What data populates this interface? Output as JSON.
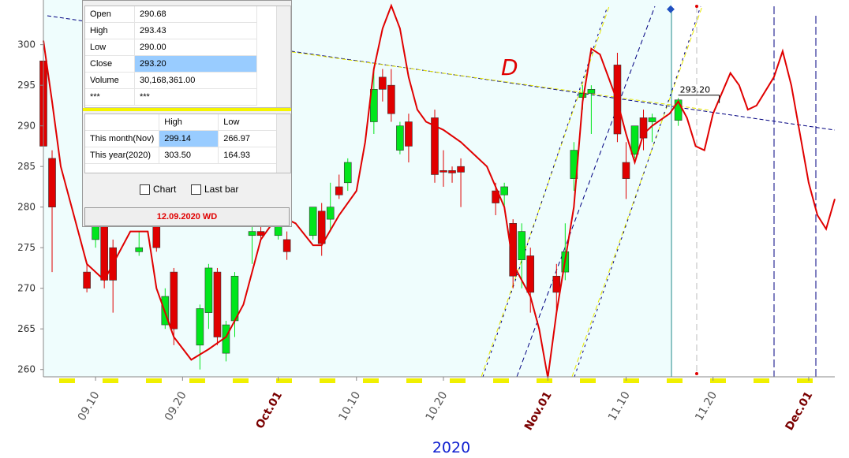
{
  "chart_data": {
    "type": "candlestick",
    "x": [
      "2020-09-04",
      "2020-09-05",
      "2020-09-09",
      "2020-09-10",
      "2020-09-11",
      "2020-09-12",
      "2020-09-15",
      "2020-09-17",
      "2020-09-18",
      "2020-09-19",
      "2020-09-22",
      "2020-09-23",
      "2020-09-24",
      "2020-09-25",
      "2020-09-26",
      "2020-09-28",
      "2020-09-29",
      "2020-10-01",
      "2020-10-02",
      "2020-10-05",
      "2020-10-06",
      "2020-10-07",
      "2020-10-08",
      "2020-10-09",
      "2020-10-12",
      "2020-10-13",
      "2020-10-14",
      "2020-10-15",
      "2020-10-16",
      "2020-10-19",
      "2020-10-20",
      "2020-10-21",
      "2020-10-22",
      "2020-10-26",
      "2020-10-27",
      "2020-10-28",
      "2020-10-29",
      "2020-10-30",
      "2020-11-02",
      "2020-11-03",
      "2020-11-04",
      "2020-11-05",
      "2020-11-06",
      "2020-11-09",
      "2020-11-10",
      "2020-11-11",
      "2020-11-12",
      "2020-11-13",
      "2020-11-16"
    ],
    "open": [
      298,
      286,
      272,
      276,
      279,
      275,
      274.5,
      278,
      265.5,
      272,
      263,
      267,
      272,
      262,
      266,
      276.5,
      277,
      276.5,
      276,
      276.5,
      279.5,
      278.5,
      282.5,
      283,
      290.5,
      296,
      295,
      287,
      290.5,
      291,
      284.5,
      284.5,
      285,
      282,
      281.5,
      278,
      273.5,
      274,
      271.5,
      272,
      283.5,
      293.5,
      294,
      297.5,
      285.5,
      286.5,
      291,
      290.5,
      290.68
    ],
    "high": [
      301,
      287,
      273,
      282,
      282,
      276,
      277,
      279,
      270,
      272.5,
      268,
      273,
      272.5,
      266,
      272,
      281,
      278,
      279,
      277,
      280,
      280.5,
      283,
      284,
      286,
      297,
      297,
      297,
      290.5,
      291.5,
      292,
      287,
      285,
      286,
      283,
      283,
      278.5,
      278,
      275,
      273,
      278,
      288,
      295,
      295,
      299,
      288,
      290,
      292,
      291.5,
      293.43
    ],
    "low": [
      285,
      272,
      269.5,
      275,
      270,
      267,
      274,
      274.5,
      265,
      263,
      260,
      265,
      263,
      261,
      264,
      273,
      276,
      276,
      273.5,
      276,
      274,
      277,
      281,
      282,
      289,
      293,
      290.5,
      286.5,
      285.5,
      283,
      282.5,
      283,
      280,
      279,
      280,
      270,
      270,
      267,
      267,
      271,
      282,
      292,
      289,
      288,
      281,
      286,
      287,
      288,
      290
    ],
    "close": [
      287.5,
      280,
      270,
      279,
      271,
      271,
      275,
      275,
      269,
      265,
      267.5,
      272.5,
      264,
      265.5,
      271.5,
      277,
      276.5,
      278,
      274.5,
      280,
      275.5,
      280,
      281.5,
      285.5,
      294.5,
      294.5,
      291.5,
      290,
      287.5,
      284,
      284.3,
      284.2,
      284.3,
      280.5,
      282.5,
      271.5,
      277,
      269.5,
      269.5,
      274.5,
      287,
      294,
      294.5,
      289,
      283.5,
      290,
      288.5,
      291,
      293.2
    ],
    "up_color": "#00e61c",
    "down_color": "#e00000",
    "line": {
      "color": "#e00000",
      "x": [
        "2020-09-04",
        "2020-09-05",
        "2020-09-06",
        "2020-09-08",
        "2020-09-09",
        "2020-09-11",
        "2020-09-12",
        "2020-09-14",
        "2020-09-16",
        "2020-09-17",
        "2020-09-19",
        "2020-09-21",
        "2020-09-23",
        "2020-09-25",
        "2020-09-27",
        "2020-09-28",
        "2020-09-29",
        "2020-10-01",
        "2020-10-03",
        "2020-10-05",
        "2020-10-06",
        "2020-10-08",
        "2020-10-10",
        "2020-10-11",
        "2020-10-12",
        "2020-10-13",
        "2020-10-14",
        "2020-10-15",
        "2020-10-16",
        "2020-10-17",
        "2020-10-18",
        "2020-10-20",
        "2020-10-22",
        "2020-10-24",
        "2020-10-25",
        "2020-10-27",
        "2020-10-28",
        "2020-10-30",
        "2020-10-31",
        "2020-11-01",
        "2020-11-02",
        "2020-11-04",
        "2020-11-05",
        "2020-11-06",
        "2020-11-07",
        "2020-11-09",
        "2020-11-10",
        "2020-11-11",
        "2020-11-12",
        "2020-11-13",
        "2020-11-15",
        "2020-11-16",
        "2020-11-17",
        "2020-11-18",
        "2020-11-19",
        "2020-11-20",
        "2020-11-22",
        "2020-11-23",
        "2020-11-24",
        "2020-11-25",
        "2020-11-27",
        "2020-11-28",
        "2020-11-29",
        "2020-11-30",
        "2020-12-01",
        "2020-12-02",
        "2020-12-03",
        "2020-12-04"
      ],
      "values": [
        300.5,
        293,
        285,
        277,
        273,
        271,
        273,
        277,
        277,
        270,
        264,
        261.2,
        262.5,
        264,
        268,
        272,
        276,
        279,
        278,
        275.3,
        275.3,
        279,
        282,
        288,
        297,
        302,
        304.8,
        302,
        296,
        292,
        290.5,
        289.5,
        288,
        286,
        285,
        280,
        273,
        269,
        265,
        259,
        267,
        280,
        293,
        299.5,
        298.8,
        293,
        289,
        285.5,
        289,
        290,
        291.5,
        293,
        291,
        287.5,
        287,
        291.5,
        296.5,
        295,
        292,
        292.5,
        296,
        299.2,
        295,
        289,
        283,
        279,
        277.3,
        281
      ]
    },
    "xlim": [
      "2020-09-04",
      "2020-12-04"
    ],
    "xticks": [
      {
        "value": "2020-09-10",
        "label": "09.10",
        "color": "#555555"
      },
      {
        "value": "2020-09-20",
        "label": "09.20",
        "color": "#555555"
      },
      {
        "value": "2020-10-01",
        "label": "Oct.01",
        "color": "#7a0000"
      },
      {
        "value": "2020-10-10",
        "label": "10.10",
        "color": "#555555"
      },
      {
        "value": "2020-10-20",
        "label": "10.20",
        "color": "#555555"
      },
      {
        "value": "2020-11-01",
        "label": "Nov.01",
        "color": "#7a0000"
      },
      {
        "value": "2020-11-10",
        "label": "11.10",
        "color": "#555555"
      },
      {
        "value": "2020-11-20",
        "label": "11.20",
        "color": "#555555"
      },
      {
        "value": "2020-12-01",
        "label": "Dec.01",
        "color": "#7a0000"
      }
    ],
    "ylim": [
      259.1,
      305.5
    ],
    "yticks": [
      260,
      265,
      270,
      275,
      280,
      285,
      290,
      295,
      300
    ],
    "xlabel": "2020",
    "price_label": "293.20",
    "annotation": "D"
  },
  "panel": {
    "quote_rows": [
      [
        "Open",
        "290.68"
      ],
      [
        "High",
        "293.43"
      ],
      [
        "Low",
        "290.00"
      ],
      [
        "Close",
        "293.20"
      ],
      [
        "Volume",
        "30,168,361.00"
      ],
      [
        "***",
        "***"
      ]
    ],
    "range_header": [
      "High",
      "Low"
    ],
    "range_rows": [
      [
        "This month(Nov)",
        "299.14",
        "266.97"
      ],
      [
        "This year(2020)",
        "303.50",
        "164.93"
      ]
    ],
    "checkboxes": [
      "Chart",
      "Last bar"
    ],
    "date": "12.09.2020 WD"
  }
}
